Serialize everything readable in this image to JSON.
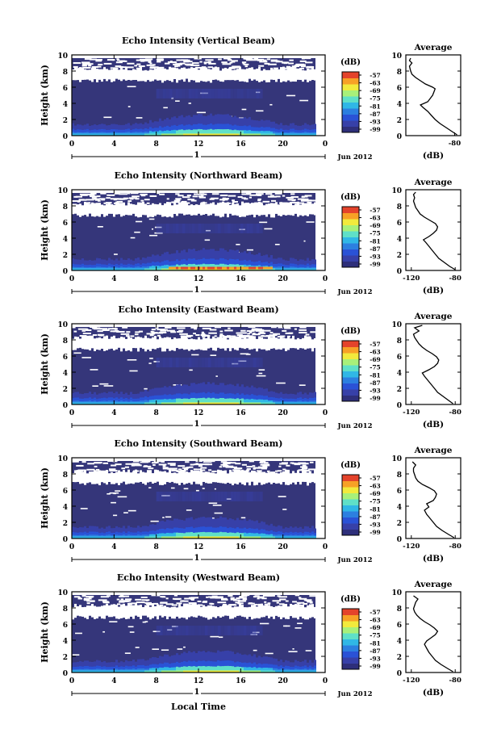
{
  "figure": {
    "xlabel_bottom": "Local Time",
    "date_label": "Jun 2012",
    "day_marker": "1",
    "colorbar_unit": "(dB)",
    "colorbar_ticks": [
      "-57",
      "-63",
      "-69",
      "-75",
      "-81",
      "-87",
      "-93",
      "-99"
    ],
    "colors": {
      "background_echo": "#35367a",
      "no_data": "#ffffff",
      "colormap": [
        "#2e2f7a",
        "#3740a8",
        "#2a52d6",
        "#2c7fe0",
        "#30b7e6",
        "#5fe0c8",
        "#a8f07a",
        "#f2ea3c",
        "#f7a126",
        "#e4432b"
      ]
    }
  },
  "chart_data": [
    {
      "type": "heatmap",
      "title": "Echo Intensity (Vertical Beam)",
      "xlabel": "",
      "ylabel": "Height (km)",
      "xlim": [
        0,
        24
      ],
      "ylim": [
        0,
        10
      ],
      "xticks": [
        "0",
        "4",
        "8",
        "12",
        "16",
        "20",
        "0"
      ],
      "yticks": [
        "0",
        "2",
        "4",
        "6",
        "8",
        "10"
      ],
      "colorbar_range_db": [
        -99,
        -57
      ],
      "profile": {
        "title": "Average",
        "xlabel": "(dB)",
        "xticks": [
          "-80"
        ],
        "xlim": [
          -120,
          -75
        ],
        "ylim": [
          0,
          10
        ],
        "yticks": [
          "0",
          "2",
          "4",
          "6",
          "8",
          "10"
        ],
        "height_km": [
          0.1,
          0.5,
          1.0,
          1.5,
          2.0,
          2.5,
          3.0,
          3.5,
          3.8,
          4.2,
          4.6,
          5.0,
          5.4,
          5.8,
          6.0,
          6.4,
          6.8,
          7.2,
          7.6,
          8.0,
          8.6,
          9.0,
          9.3,
          9.6
        ],
        "echo_db": [
          -78,
          -82,
          -87,
          -92,
          -96,
          -99,
          -102,
          -106,
          -108,
          -102,
          -100,
          -98,
          -97,
          -96,
          -98,
          -104,
          -108,
          -112,
          -115,
          -116,
          -117,
          -115,
          -117,
          -116
        ]
      }
    },
    {
      "type": "heatmap",
      "title": "Echo Intensity (Northward Beam)",
      "xlabel": "",
      "ylabel": "Height (km)",
      "xlim": [
        0,
        24
      ],
      "ylim": [
        0,
        10
      ],
      "xticks": [
        "0",
        "4",
        "8",
        "12",
        "16",
        "20",
        "0"
      ],
      "yticks": [
        "0",
        "2",
        "4",
        "6",
        "8",
        "10"
      ],
      "colorbar_range_db": [
        -99,
        -57
      ],
      "profile": {
        "title": "Average",
        "xlabel": "(dB)",
        "xticks": [
          "-120",
          "-80"
        ],
        "xlim": [
          -125,
          -75
        ],
        "ylim": [
          0,
          10
        ],
        "yticks": [
          "0",
          "2",
          "4",
          "6",
          "8",
          "10"
        ],
        "height_km": [
          0.1,
          0.5,
          1.0,
          1.5,
          2.0,
          2.5,
          3.0,
          3.5,
          3.8,
          4.2,
          4.6,
          5.0,
          5.4,
          5.8,
          6.2,
          6.6,
          7.0,
          7.4,
          7.8,
          8.2,
          8.6,
          9.0,
          9.4,
          9.7
        ],
        "echo_db": [
          -80,
          -85,
          -90,
          -95,
          -98,
          -101,
          -104,
          -107,
          -109,
          -104,
          -100,
          -97,
          -96,
          -98,
          -103,
          -108,
          -112,
          -114,
          -116,
          -117,
          -118,
          -117,
          -118,
          -116
        ]
      }
    },
    {
      "type": "heatmap",
      "title": "Echo Intensity (Eastward Beam)",
      "xlabel": "",
      "ylabel": "Height (km)",
      "xlim": [
        0,
        24
      ],
      "ylim": [
        0,
        10
      ],
      "xticks": [
        "0",
        "4",
        "8",
        "12",
        "16",
        "20",
        "0"
      ],
      "yticks": [
        "0",
        "2",
        "4",
        "6",
        "8",
        "10"
      ],
      "colorbar_range_db": [
        -99,
        -57
      ],
      "profile": {
        "title": "Average",
        "xlabel": "(dB)",
        "xticks": [
          "-120",
          "-80"
        ],
        "xlim": [
          -125,
          -75
        ],
        "ylim": [
          0,
          10
        ],
        "yticks": [
          "0",
          "2",
          "4",
          "6",
          "8",
          "10"
        ],
        "height_km": [
          0.1,
          0.5,
          1.0,
          1.5,
          2.0,
          2.5,
          3.0,
          3.5,
          3.9,
          4.3,
          4.7,
          5.1,
          5.5,
          5.9,
          6.3,
          6.7,
          7.1,
          7.5,
          7.9,
          8.3,
          8.7,
          9.1,
          9.5,
          9.8
        ],
        "echo_db": [
          -82,
          -86,
          -91,
          -96,
          -99,
          -102,
          -105,
          -108,
          -110,
          -104,
          -99,
          -96,
          -95,
          -97,
          -101,
          -106,
          -110,
          -113,
          -115,
          -117,
          -118,
          -113,
          -117,
          -110
        ]
      }
    },
    {
      "type": "heatmap",
      "title": "Echo Intensity (Southward Beam)",
      "xlabel": "",
      "ylabel": "Height (km)",
      "xlim": [
        0,
        24
      ],
      "ylim": [
        0,
        10
      ],
      "xticks": [
        "0",
        "4",
        "8",
        "12",
        "16",
        "20",
        "0"
      ],
      "yticks": [
        "0",
        "2",
        "4",
        "6",
        "8",
        "10"
      ],
      "colorbar_range_db": [
        -99,
        -57
      ],
      "profile": {
        "title": "Average",
        "xlabel": "(dB)",
        "xticks": [
          "-120",
          "-80"
        ],
        "xlim": [
          -125,
          -75
        ],
        "ylim": [
          0,
          10
        ],
        "yticks": [
          "0",
          "2",
          "4",
          "6",
          "8",
          "10"
        ],
        "height_km": [
          0.1,
          0.5,
          1.0,
          1.5,
          2.0,
          2.5,
          3.0,
          3.5,
          3.9,
          4.3,
          4.7,
          5.1,
          5.5,
          5.9,
          6.3,
          6.7,
          7.1,
          7.5,
          7.9,
          8.3,
          8.7,
          9.1,
          9.5
        ],
        "echo_db": [
          -81,
          -86,
          -92,
          -97,
          -100,
          -103,
          -106,
          -108,
          -104,
          -106,
          -100,
          -98,
          -97,
          -99,
          -104,
          -110,
          -114,
          -116,
          -117,
          -118,
          -118,
          -116,
          -119
        ]
      }
    },
    {
      "type": "heatmap",
      "title": "Echo Intensity (Westward Beam)",
      "xlabel": "Local Time",
      "ylabel": "Height (km)",
      "xlim": [
        0,
        24
      ],
      "ylim": [
        0,
        10
      ],
      "xticks": [
        "0",
        "4",
        "8",
        "12",
        "16",
        "20",
        "0"
      ],
      "yticks": [
        "0",
        "2",
        "4",
        "6",
        "8",
        "10"
      ],
      "colorbar_range_db": [
        -99,
        -57
      ],
      "profile": {
        "title": "Average",
        "xlabel": "(dB)",
        "xticks": [
          "-120",
          "-80"
        ],
        "xlim": [
          -125,
          -75
        ],
        "ylim": [
          0,
          10
        ],
        "yticks": [
          "0",
          "2",
          "4",
          "6",
          "8",
          "10"
        ],
        "height_km": [
          0.1,
          0.5,
          1.0,
          1.5,
          2.0,
          2.5,
          3.0,
          3.5,
          3.9,
          4.3,
          4.7,
          5.1,
          5.5,
          5.9,
          6.3,
          6.7,
          7.1,
          7.5,
          7.9,
          8.3,
          8.7,
          9.1,
          9.5
        ],
        "echo_db": [
          -82,
          -87,
          -93,
          -98,
          -101,
          -104,
          -106,
          -108,
          -106,
          -102,
          -98,
          -96,
          -99,
          -103,
          -108,
          -112,
          -115,
          -117,
          -118,
          -117,
          -116,
          -114,
          -118
        ]
      }
    }
  ]
}
